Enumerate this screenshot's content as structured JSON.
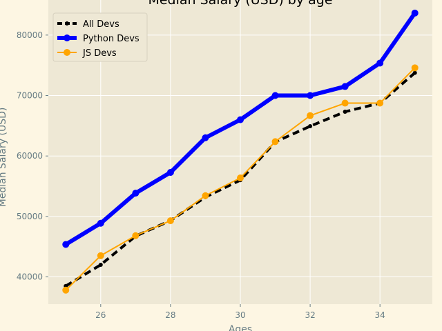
{
  "chart_data": {
    "type": "line",
    "title": "Median Salary (USD) by age",
    "xlabel": "Ages",
    "ylabel": "Median Salary (USD)",
    "x": [
      25,
      26,
      27,
      28,
      29,
      30,
      31,
      32,
      33,
      34,
      35
    ],
    "xlim": [
      24.5,
      35.5
    ],
    "ylim": [
      35500,
      85800
    ],
    "xticks": [
      26,
      28,
      30,
      32,
      34
    ],
    "yticks": [
      40000,
      50000,
      60000,
      70000,
      80000
    ],
    "grid": true,
    "legend_position": "top-left",
    "series": [
      {
        "name": "All Devs",
        "values": [
          38496,
          42000,
          46752,
          49320,
          53200,
          56000,
          62316,
          64928,
          67317,
          68748,
          73752
        ],
        "color": "#000000",
        "style": "dashed"
      },
      {
        "name": "Python Devs",
        "values": [
          45372,
          48876,
          53850,
          57287,
          63016,
          65998,
          70003,
          70000,
          71496,
          75370,
          83640
        ],
        "color": "#0000ff",
        "style": "solid-thick"
      },
      {
        "name": "JS Devs",
        "values": [
          37810,
          43515,
          46823,
          49293,
          53437,
          56373,
          62375,
          66674,
          68745,
          68746,
          74583
        ],
        "color": "#ffa500",
        "style": "solid"
      }
    ]
  }
}
